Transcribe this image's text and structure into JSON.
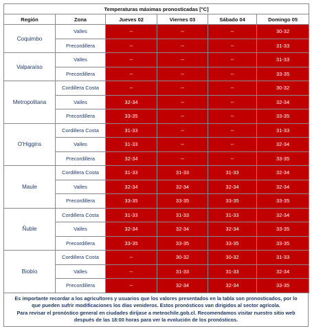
{
  "table": {
    "title": "Temperaturas máximas pronosticadas [°C]",
    "headers": [
      "Región",
      "Zona",
      "Jueves 02",
      "Viernes 03",
      "Sábado 04",
      "Domingo 05"
    ],
    "groups": [
      {
        "region": "Coquimbo",
        "rows": [
          {
            "zona": "Valles",
            "values": [
              "--",
              "--",
              "--",
              "30-32"
            ]
          },
          {
            "zona": "Precordillera",
            "values": [
              "--",
              "--",
              "--",
              "31-33"
            ]
          }
        ]
      },
      {
        "region": "Valparaíso",
        "rows": [
          {
            "zona": "Valles",
            "values": [
              "--",
              "--",
              "--",
              "31-33"
            ]
          },
          {
            "zona": "Precordillera",
            "values": [
              "--",
              "--",
              "--",
              "33-35"
            ]
          }
        ]
      },
      {
        "region": "Metropolitana",
        "rows": [
          {
            "zona": "Cordillera Costa",
            "values": [
              "--",
              "--",
              "--",
              "30-32"
            ]
          },
          {
            "zona": "Valles",
            "values": [
              "32-34",
              "--",
              "--",
              "32-34"
            ]
          },
          {
            "zona": "Precordillera",
            "values": [
              "33-35",
              "--",
              "--",
              "33-35"
            ]
          }
        ]
      },
      {
        "region": "O'Higgins",
        "rows": [
          {
            "zona": "Cordillera Costa",
            "values": [
              "31-33",
              "--",
              "--",
              "31-33"
            ]
          },
          {
            "zona": "Valles",
            "values": [
              "31-33",
              "--",
              "--",
              "32-34"
            ]
          },
          {
            "zona": "Precordillera",
            "values": [
              "32-34",
              "--",
              "--",
              "33-35"
            ]
          }
        ]
      },
      {
        "region": "Maule",
        "rows": [
          {
            "zona": "Cordillera Costa",
            "values": [
              "31-33",
              "31-33",
              "31-33",
              "32-34"
            ]
          },
          {
            "zona": "Valles",
            "values": [
              "32-34",
              "32-34",
              "32-34",
              "32-34"
            ]
          },
          {
            "zona": "Precordillera",
            "values": [
              "33-35",
              "33-35",
              "33-35",
              "33-35"
            ]
          }
        ]
      },
      {
        "region": "Ñuble",
        "rows": [
          {
            "zona": "Cordillera Costa",
            "values": [
              "31-33",
              "31-33",
              "31-33",
              "32-34"
            ]
          },
          {
            "zona": "Valles",
            "values": [
              "32-34",
              "32-34",
              "32-34",
              "33-35"
            ]
          },
          {
            "zona": "Precordillera",
            "values": [
              "33-35",
              "33-35",
              "33-35",
              "33-35"
            ]
          }
        ]
      },
      {
        "region": "Biobío",
        "rows": [
          {
            "zona": "Cordillera Costa",
            "values": [
              "--",
              "30-32",
              "30-32",
              "31-33"
            ]
          },
          {
            "zona": "Valles",
            "values": [
              "--",
              "31-33",
              "31-33",
              "32-34"
            ]
          },
          {
            "zona": "Precordillera",
            "values": [
              "--",
              "32-34",
              "32-34",
              "33-35"
            ]
          }
        ]
      }
    ],
    "note": [
      "Es importante recordar a los agricultores y usuarios que los valores presentados en la tabla son pronosticados, por lo",
      "que pueden sufrir modificaciones los días venideros. Estos pronósticos van dirigidos al sector agrícola.",
      "Para revisar el pronóstico general en ciudades diríjase a meteochile.gob.cl. Recomendamos visitar nuestro sitio web",
      "después de las 18:00 horas para ver la evolución de los pronósticos."
    ]
  }
}
